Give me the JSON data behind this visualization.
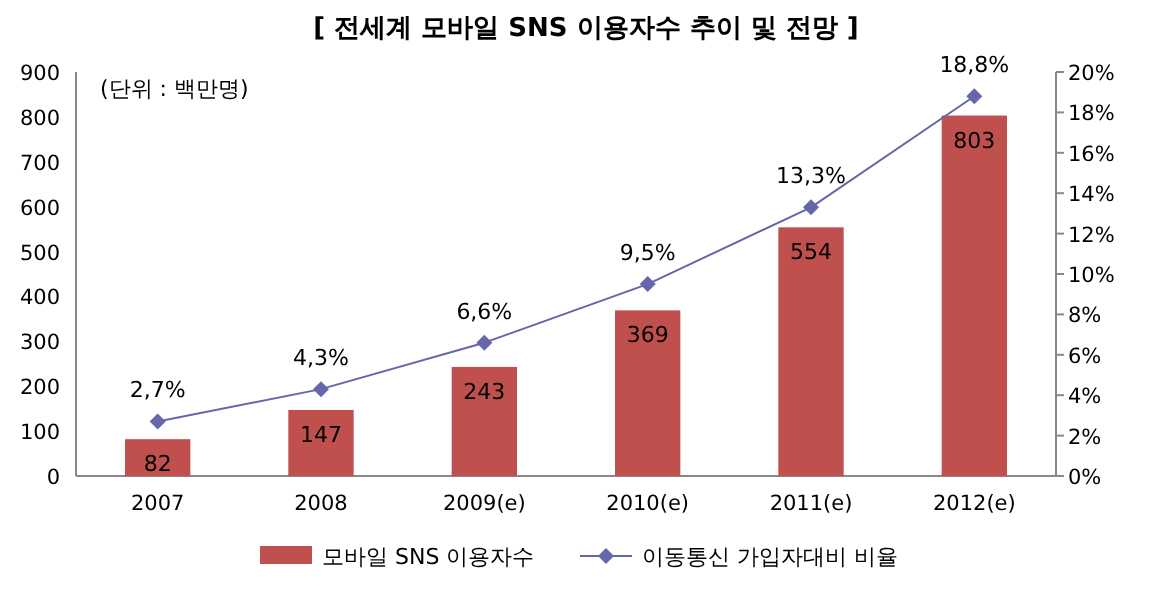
{
  "chart_data": {
    "type": "bar",
    "title": "[ 전세계 모바일 SNS 이용자수 추이 및 전망 ]",
    "annotations": [
      "(단위 : 백만명)"
    ],
    "categories": [
      "2007",
      "2008",
      "2009(e)",
      "2010(e)",
      "2011(e)",
      "2012(e)"
    ],
    "series": [
      {
        "name": "모바일 SNS 이용자수",
        "color": "#c0504d",
        "values": [
          82,
          147,
          243,
          369,
          554,
          803
        ],
        "value_labels": [
          "82",
          "147",
          "243",
          "369",
          "554",
          "803"
        ]
      },
      {
        "name": "이동통신 가입자대비 비율",
        "type": "line",
        "axis": "y2",
        "color": "#6666aa",
        "marker": "diamond",
        "values": [
          2.7,
          4.3,
          6.6,
          9.5,
          13.3,
          18.8
        ],
        "value_labels": [
          "2,7%",
          "4,3%",
          "6,6%",
          "9,5%",
          "13,3%",
          "18,8%"
        ]
      }
    ],
    "ylim": [
      0,
      900
    ],
    "yticks": [
      0,
      100,
      200,
      300,
      400,
      500,
      600,
      700,
      800,
      900
    ],
    "y2lim": [
      0,
      20
    ],
    "y2ticks": [
      {
        "value": 0,
        "label": "0%"
      },
      {
        "value": 2,
        "label": "2%"
      },
      {
        "value": 4,
        "label": "4%"
      },
      {
        "value": 6,
        "label": "6%"
      },
      {
        "value": 8,
        "label": "8%"
      },
      {
        "value": 10,
        "label": "10%"
      },
      {
        "value": 12,
        "label": "12%"
      },
      {
        "value": 14,
        "label": "14%"
      },
      {
        "value": 16,
        "label": "16%"
      },
      {
        "value": 18,
        "label": "18%"
      },
      {
        "value": 20,
        "label": "20%"
      }
    ],
    "grid": false,
    "legend": "bottom"
  }
}
